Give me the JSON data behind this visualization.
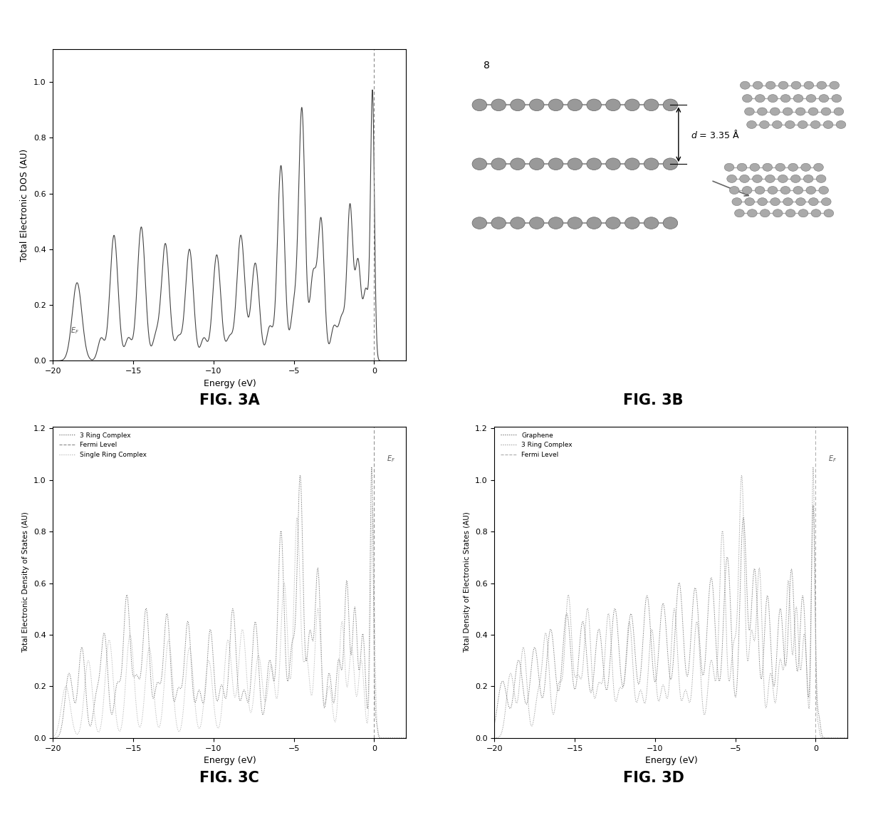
{
  "fig3a_title": "FIG. 3A",
  "fig3b_title": "FIG. 3B",
  "fig3c_title": "FIG. 3C",
  "fig3d_title": "FIG. 3D",
  "xlabel": "Energy (eV)",
  "ylabel_3a": "Total Electronic DOS (AU)",
  "ylabel_3cd": "Total Electronic Density of States (AU)",
  "ylabel_3d": "Total Density of Electronic States (AU)",
  "xlim": [
    -20,
    2
  ],
  "xticks": [
    -20,
    -15,
    -10,
    -5,
    0
  ],
  "fermi_level": 0.0,
  "fig3c_legend": [
    "3 Ring Complex",
    "Fermi Level",
    "Single Ring Complex"
  ],
  "fig3d_legend": [
    "Graphene",
    "3 Ring Complex",
    "Fermi Level"
  ],
  "line_color_3a": "#555555",
  "line_color_dotted": "#888888",
  "line_color_dashed": "#aaaaaa",
  "line_color_light": "#cccccc",
  "background_color": "#ffffff",
  "title_fontsize": 16,
  "label_fontsize": 9,
  "tick_fontsize": 8
}
